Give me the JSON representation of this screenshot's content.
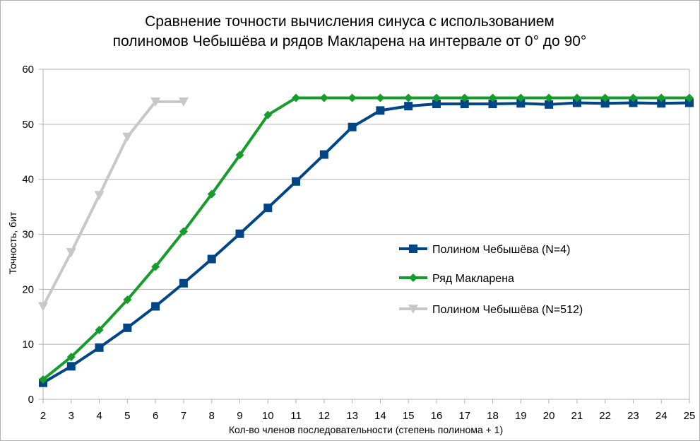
{
  "chart_data": {
    "type": "line",
    "title": [
      "Сравнение точности вычисления синуса с использованием",
      "полиномов Чебышёва и рядов Макларена на интервале от 0° до 90°"
    ],
    "xlabel": "Кол-во членов последовательности (степень полинома + 1)",
    "ylabel": "Точность, бит",
    "x_ticks": [
      2,
      3,
      4,
      5,
      6,
      7,
      8,
      9,
      10,
      11,
      12,
      13,
      14,
      15,
      16,
      17,
      18,
      19,
      20,
      21,
      22,
      23,
      24,
      25
    ],
    "y_ticks": [
      0,
      10,
      20,
      30,
      40,
      50,
      60
    ],
    "xlim": [
      2,
      25
    ],
    "ylim": [
      0,
      60
    ],
    "grid": "horizontal",
    "legend_position": "right",
    "series": [
      {
        "name": "Полином Чебышёва (N=4)",
        "color": "#004586",
        "marker": "square",
        "x": [
          2,
          3,
          4,
          5,
          6,
          7,
          8,
          9,
          10,
          11,
          12,
          13,
          14,
          15,
          16,
          17,
          18,
          19,
          20,
          21,
          22,
          23,
          24,
          25
        ],
        "values": [
          3.0,
          6.0,
          9.4,
          13.0,
          16.9,
          21.1,
          25.5,
          30.1,
          34.8,
          39.6,
          44.5,
          49.5,
          52.5,
          53.3,
          53.7,
          53.7,
          53.7,
          53.8,
          53.6,
          53.9,
          53.8,
          53.9,
          53.8,
          53.9
        ]
      },
      {
        "name": "Ряд Макларена",
        "color": "#169c2b",
        "marker": "diamond",
        "x": [
          2,
          3,
          4,
          5,
          6,
          7,
          8,
          9,
          10,
          11,
          12,
          13,
          14,
          15,
          16,
          17,
          18,
          19,
          20,
          21,
          22,
          23,
          24,
          25
        ],
        "values": [
          3.6,
          7.7,
          12.6,
          18.1,
          24.1,
          30.5,
          37.3,
          44.4,
          51.7,
          54.8,
          54.8,
          54.8,
          54.8,
          54.8,
          54.8,
          54.8,
          54.8,
          54.8,
          54.8,
          54.8,
          54.8,
          54.8,
          54.8,
          54.8
        ]
      },
      {
        "name": "Полином Чебышёва (N=512)",
        "color": "#c8c8c8",
        "marker": "triangle-down",
        "x": [
          2,
          3,
          4,
          5,
          6,
          7
        ],
        "values": [
          16.9,
          26.7,
          37.1,
          47.7,
          54.1,
          54.1
        ]
      }
    ]
  }
}
